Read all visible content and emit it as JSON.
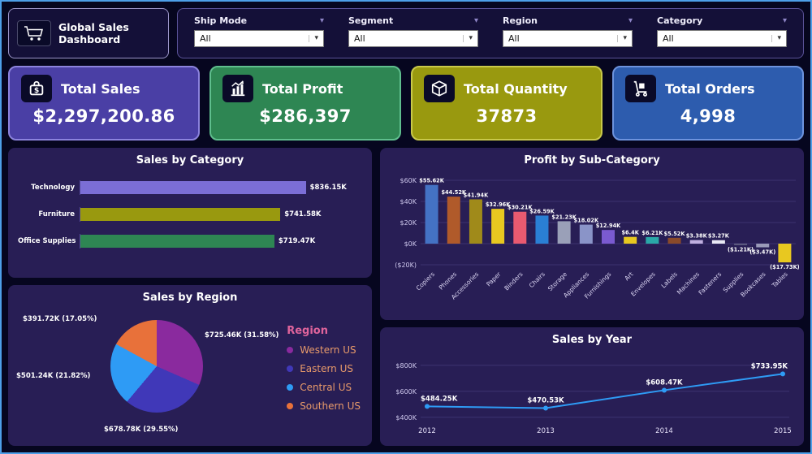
{
  "header": {
    "title": "Global Sales Dashboard",
    "filters": [
      {
        "label": "Ship Mode",
        "value": "All"
      },
      {
        "label": "Segment",
        "value": "All"
      },
      {
        "label": "Region",
        "value": "All"
      },
      {
        "label": "Category",
        "value": "All"
      }
    ]
  },
  "kpis": [
    {
      "label": "Total Sales",
      "value": "$2,297,200.86",
      "icon": "dollar-case-icon",
      "bg": "#4a3fa5",
      "border": "#8c83dd"
    },
    {
      "label": "Total Profit",
      "value": "$286,397",
      "icon": "profit-bars-icon",
      "bg": "#2e8653",
      "border": "#5fbe8d"
    },
    {
      "label": "Total Quantity",
      "value": "37873",
      "icon": "box-icon",
      "bg": "#99990f",
      "border": "#c9c94a"
    },
    {
      "label": "Total Orders",
      "value": "4,998",
      "icon": "hand-truck-icon",
      "bg": "#2d5cae",
      "border": "#6d93dd"
    }
  ],
  "chart_data": [
    {
      "type": "bar",
      "orientation": "horizontal",
      "title": "Sales by Category",
      "categories": [
        "Technology",
        "Furniture",
        "Office Supplies"
      ],
      "values": [
        836.15,
        741.58,
        719.47
      ],
      "labels": [
        "$836.15K",
        "$741.58K",
        "$719.47K"
      ],
      "colors": [
        "#7b6ed6",
        "#99990f",
        "#2e8653"
      ]
    },
    {
      "type": "bar",
      "title": "Profit by Sub-Category",
      "categories": [
        "Copiers",
        "Phones",
        "Accessories",
        "Paper",
        "Binders",
        "Chairs",
        "Storage",
        "Appliances",
        "Furnishings",
        "Art",
        "Envelopes",
        "Labels",
        "Machines",
        "Fasteners",
        "Supplies",
        "Bookcases",
        "Tables"
      ],
      "values": [
        55.62,
        44.52,
        41.94,
        32.96,
        30.21,
        26.59,
        21.23,
        18.02,
        12.94,
        6.4,
        6.21,
        5.52,
        3.38,
        3.27,
        -1.21,
        -3.47,
        -17.73
      ],
      "labels": [
        "$55.62K",
        "$44.52K",
        "$41.94K",
        "$32.96K",
        "$30.21K",
        "$26.59K",
        "$21.23K",
        "$18.02K",
        "$12.94K",
        "$6.4K",
        "$6.21K",
        "$5.52K",
        "$3.38K",
        "$3.27K",
        "($1.21K)",
        "($3.47K)",
        "($17.73K)"
      ],
      "colors": [
        "#4472c4",
        "#b05a2a",
        "#a08a1a",
        "#e8c820",
        "#e85a70",
        "#2a7fd4",
        "#9aa0b8",
        "#8a94c8",
        "#7a5ad0",
        "#e8c820",
        "#2aa8a8",
        "#8a4a2a",
        "#c0b0e0",
        "#e8e8f4",
        "#6a6a8a",
        "#9a9ab8",
        "#e8c820"
      ],
      "ylim": [
        -20,
        60
      ],
      "yticks": [
        {
          "v": 60,
          "label": "$60K"
        },
        {
          "v": 40,
          "label": "$40K"
        },
        {
          "v": 20,
          "label": "$20K"
        },
        {
          "v": 0,
          "label": "$0K"
        },
        {
          "v": -20,
          "label": "($20K)"
        }
      ]
    },
    {
      "type": "pie",
      "title": "Sales by Region",
      "legend_title": "Region",
      "legend_position": "right",
      "slices": [
        {
          "name": "Western US",
          "value": 725.46,
          "pct": 31.58,
          "label": "$725.46K (31.58%)",
          "color": "#8a2a9e"
        },
        {
          "name": "Eastern US",
          "value": 678.78,
          "pct": 29.55,
          "label": "$678.78K (29.55%)",
          "color": "#4038b8"
        },
        {
          "name": "Central US",
          "value": 501.24,
          "pct": 21.82,
          "label": "$501.24K (21.82%)",
          "color": "#2e9bf5"
        },
        {
          "name": "Southern US",
          "value": 391.72,
          "pct": 17.05,
          "label": "$391.72K (17.05%)",
          "color": "#e8713a"
        }
      ]
    },
    {
      "type": "line",
      "title": "Sales by Year",
      "x": [
        "2012",
        "2013",
        "2014",
        "2015"
      ],
      "values": [
        484.25,
        470.53,
        608.47,
        733.95
      ],
      "labels": [
        "$484.25K",
        "$470.53K",
        "$608.47K",
        "$733.95K"
      ],
      "ylim": [
        400,
        800
      ],
      "yticks": [
        {
          "v": 800,
          "label": "$800K"
        },
        {
          "v": 600,
          "label": "$600K"
        },
        {
          "v": 400,
          "label": "$400K"
        }
      ],
      "line_color": "#2e9bf5"
    }
  ]
}
